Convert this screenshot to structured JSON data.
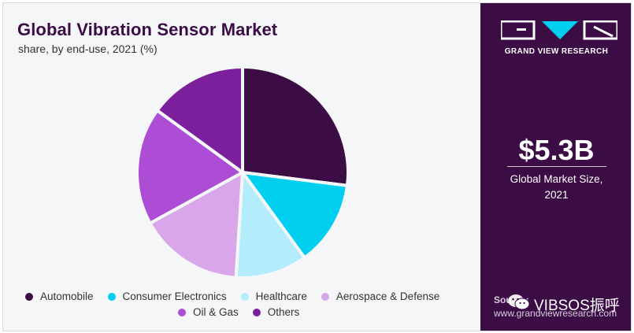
{
  "header": {
    "title": "Global Vibration Sensor Market",
    "subtitle": "share, by end-use, 2021 (%)"
  },
  "chart_data": {
    "type": "pie",
    "title": "Global Vibration Sensor Market",
    "subtitle": "share, by end-use, 2021 (%)",
    "categories": [
      "Automobile",
      "Consumer Electronics",
      "Healthcare",
      "Aerospace & Defense",
      "Oil & Gas",
      "Others"
    ],
    "values": [
      27,
      13,
      11,
      16,
      18,
      15
    ],
    "colors": [
      "#3c0c45",
      "#00cfef",
      "#b3ecfb",
      "#d9a6ea",
      "#ad4dd6",
      "#7b1f9d"
    ],
    "start_angle_deg": 0,
    "direction": "clockwise",
    "legend_position": "bottom"
  },
  "legend": {
    "row1": [
      "Automobile",
      "Consumer Electronics",
      "Healthcare",
      "Aerospace & Defense"
    ],
    "row2": [
      "Oil & Gas",
      "Others"
    ]
  },
  "sidebar": {
    "brand_name": "GRAND VIEW RESEARCH",
    "logo_icon": "grand-view-research-logo",
    "market_size": "$5.3B",
    "market_caption_line1": "Global Market Size,",
    "market_caption_line2": "2021",
    "source_label": "Source:",
    "source_url": "www.grandviewresearch.com",
    "watermark_text": "VIBSOS振呼",
    "watermark_icon": "wechat-icon",
    "background_color": "#3c0c45"
  }
}
